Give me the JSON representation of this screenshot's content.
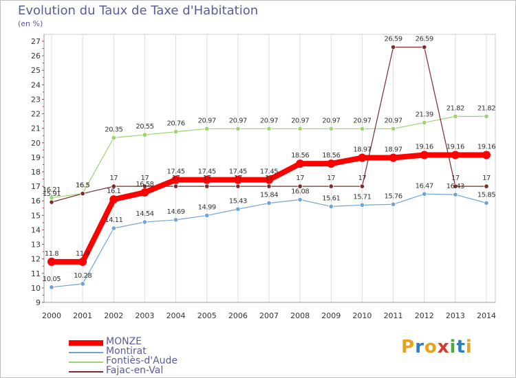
{
  "title": "Evolution du Taux de Taxe d'Habitation",
  "unit": "(en %)",
  "logo": {
    "text": "Proxiti",
    "colors": [
      "#e8a21c",
      "#2a7fc1",
      "#e8a21c",
      "#d83a2a",
      "#4aa83a",
      "#2a7fc1",
      "#e8a21c"
    ]
  },
  "chart_data": {
    "type": "line",
    "title": "Evolution du Taux de Taxe d'Habitation",
    "ylabel": "(en %)",
    "xlabel": "",
    "x": [
      "2000",
      "2001",
      "2002",
      "2003",
      "2004",
      "2005",
      "2006",
      "2007",
      "2008",
      "2009",
      "2010",
      "2011",
      "2012",
      "2013",
      "2014"
    ],
    "ylim": [
      9,
      27
    ],
    "yticks": [
      "9",
      "10",
      "11",
      "12",
      "13",
      "14",
      "15",
      "16",
      "17",
      "18",
      "19",
      "20",
      "21",
      "22",
      "23",
      "24",
      "25",
      "26",
      "27"
    ],
    "grid": "vertical",
    "legend_position": "bottom-left",
    "series": [
      {
        "name": "MONZE",
        "color": "#ff0000",
        "values": [
          11.8,
          11.8,
          16.1,
          16.58,
          17.45,
          17.45,
          17.45,
          17.45,
          18.56,
          18.56,
          18.97,
          18.97,
          19.16,
          19.16,
          19.16
        ],
        "labels": [
          "11.8",
          "11.8",
          "16.1",
          "16.58",
          "17.45",
          "17.45",
          "17.45",
          "17.45",
          "18.56",
          "18.56",
          "18.97",
          "18.97",
          "19.16",
          "19.16",
          "19.16"
        ]
      },
      {
        "name": "Montirat",
        "color": "#6fa3d4",
        "values": [
          10.05,
          10.28,
          14.11,
          14.54,
          14.69,
          14.99,
          15.43,
          15.84,
          16.08,
          15.61,
          15.71,
          15.76,
          16.47,
          16.43,
          15.85
        ],
        "labels": [
          "10.05",
          "10.28",
          "14.11",
          "14.54",
          "14.69",
          "14.99",
          "15.43",
          "15.84",
          "16.08",
          "15.61",
          "15.71",
          "15.76",
          "16.47",
          "16.43",
          "15.85"
        ]
      },
      {
        "name": "Fontiès-d'Aude",
        "color": "#9ad46a",
        "values": [
          16.21,
          16.5,
          20.35,
          20.55,
          20.76,
          20.97,
          20.97,
          20.97,
          20.97,
          20.97,
          20.97,
          20.97,
          21.39,
          21.82,
          21.82
        ],
        "labels": [
          "16.21",
          "16.5",
          "20.35",
          "20.55",
          "20.76",
          "20.97",
          "20.97",
          "20.97",
          "20.97",
          "20.97",
          "20.97",
          "20.97",
          "21.39",
          "21.82",
          "21.82"
        ]
      },
      {
        "name": "Fajac-en-Val",
        "color": "#7a2a2a",
        "values": [
          15.91,
          16.5,
          17,
          17,
          17,
          17,
          17,
          17,
          17,
          17,
          17,
          26.59,
          26.59,
          17,
          17
        ],
        "labels": [
          "15.91",
          "16.5",
          "17",
          "17",
          "17",
          "17",
          "17",
          "17",
          "17",
          "17",
          "17",
          "26.59",
          "26.59",
          "17",
          "17"
        ]
      }
    ]
  }
}
